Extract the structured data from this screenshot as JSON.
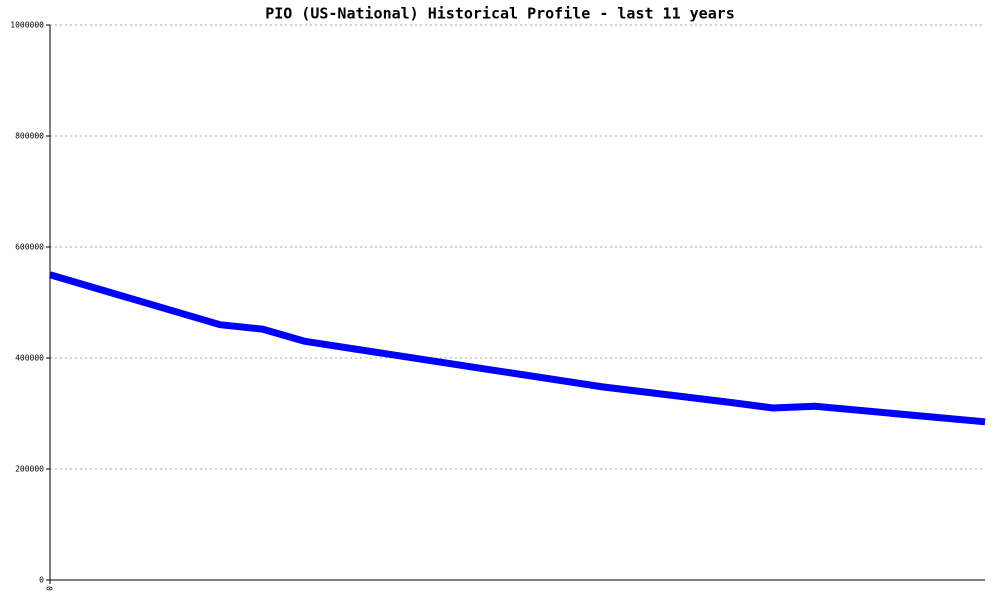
{
  "chart_data": {
    "type": "line",
    "title": "PIO (US-National) Historical Profile - last 11 years",
    "x": [
      0,
      2,
      2.5,
      3,
      5,
      6.5,
      8,
      8.5,
      9,
      11
    ],
    "series": [
      {
        "color": "#0000ff",
        "values": [
          550000,
          460000,
          452000,
          430000,
          383000,
          348000,
          320000,
          310000,
          313000,
          285000
        ]
      }
    ],
    "xlim": [
      0,
      11
    ],
    "xticks": [
      0
    ],
    "ylim": [
      0,
      1000000
    ],
    "yticks": [
      0,
      200000,
      400000,
      600000,
      800000,
      1000000
    ],
    "grid": true
  }
}
